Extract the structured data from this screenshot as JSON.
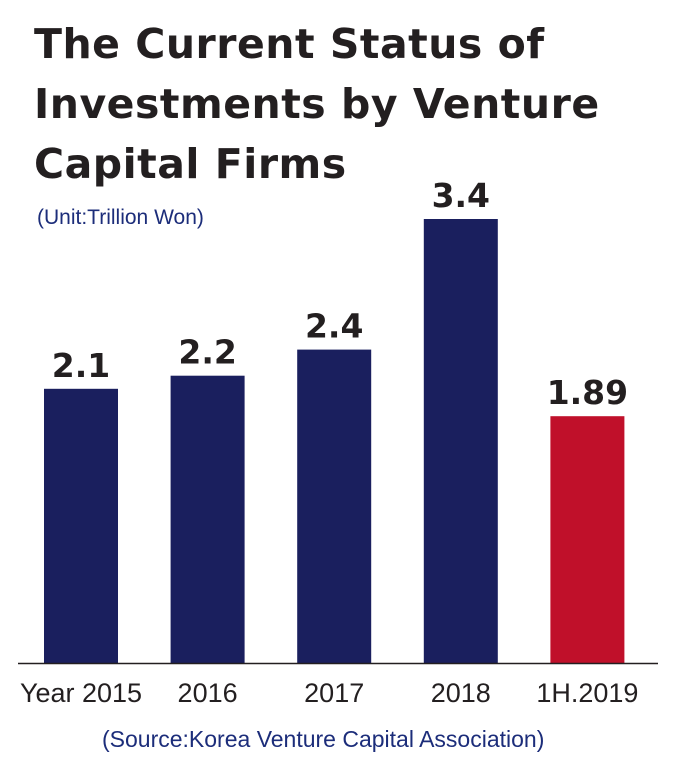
{
  "unit_note": "(Unit:Trillion Won)",
  "source_note": "(Source:Korea Venture Capital Association)",
  "colors": {
    "bar_default": "#1a1f5e",
    "bar_highlight": "#c0102a",
    "axis": "#231f20"
  },
  "chart_data": {
    "type": "bar",
    "title": "The Current Status of Investments by Venture Capital Firms",
    "categories": [
      "Year 2015",
      "2016",
      "2017",
      "2018",
      "1H.2019"
    ],
    "values": [
      2.1,
      2.2,
      2.4,
      3.4,
      1.89
    ],
    "data_labels": [
      "2.1",
      "2.2",
      "2.4",
      "3.4",
      "1.89"
    ],
    "highlight_index": 4,
    "xlabel": "",
    "ylabel": "",
    "ylim": [
      0,
      3.4
    ],
    "grid": false,
    "legend": "none"
  }
}
